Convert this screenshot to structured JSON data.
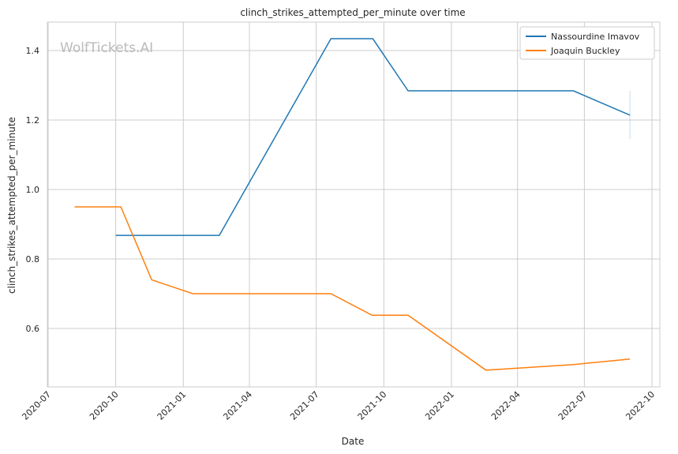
{
  "chart_data": {
    "type": "line",
    "title": "clinch_strikes_attempted_per_minute over time",
    "xlabel": "Date",
    "ylabel": "clinch_strikes_attempted_per_minute",
    "watermark": "WolfTickets.AI",
    "xlim": [
      "2020-06-30",
      "2022-10-10"
    ],
    "ylim": [
      0.432,
      1.48
    ],
    "x_ticks": [
      "2020-07",
      "2020-10",
      "2021-01",
      "2021-04",
      "2021-07",
      "2021-10",
      "2022-01",
      "2022-04",
      "2022-07",
      "2022-10"
    ],
    "y_ticks": [
      0.6,
      0.8,
      1.0,
      1.2,
      1.4
    ],
    "y_tick_labels": [
      "0.6",
      "0.8",
      "1.0",
      "1.2",
      "1.4"
    ],
    "grid": true,
    "legend_position": "top-right",
    "series": [
      {
        "name": "Nassourdine Imavov",
        "color": "#1f77b4",
        "x": [
          "2020-10-01",
          "2021-02-19",
          "2021-07-21",
          "2021-09-16",
          "2021-11-03",
          "2022-06-16",
          "2022-09-01"
        ],
        "y": [
          0.868,
          0.868,
          1.434,
          1.434,
          1.284,
          1.284,
          1.214
        ],
        "interval_last": [
          1.145,
          1.284
        ]
      },
      {
        "name": "Joaquin Buckley",
        "color": "#ff7f0e",
        "x": [
          "2020-08-06",
          "2020-10-08",
          "2020-11-19",
          "2021-01-14",
          "2021-07-21",
          "2021-09-15",
          "2021-11-03",
          "2022-02-17",
          "2022-06-16",
          "2022-09-01"
        ],
        "y": [
          0.95,
          0.95,
          0.74,
          0.7,
          0.7,
          0.638,
          0.638,
          0.48,
          0.496,
          0.512
        ]
      }
    ]
  }
}
